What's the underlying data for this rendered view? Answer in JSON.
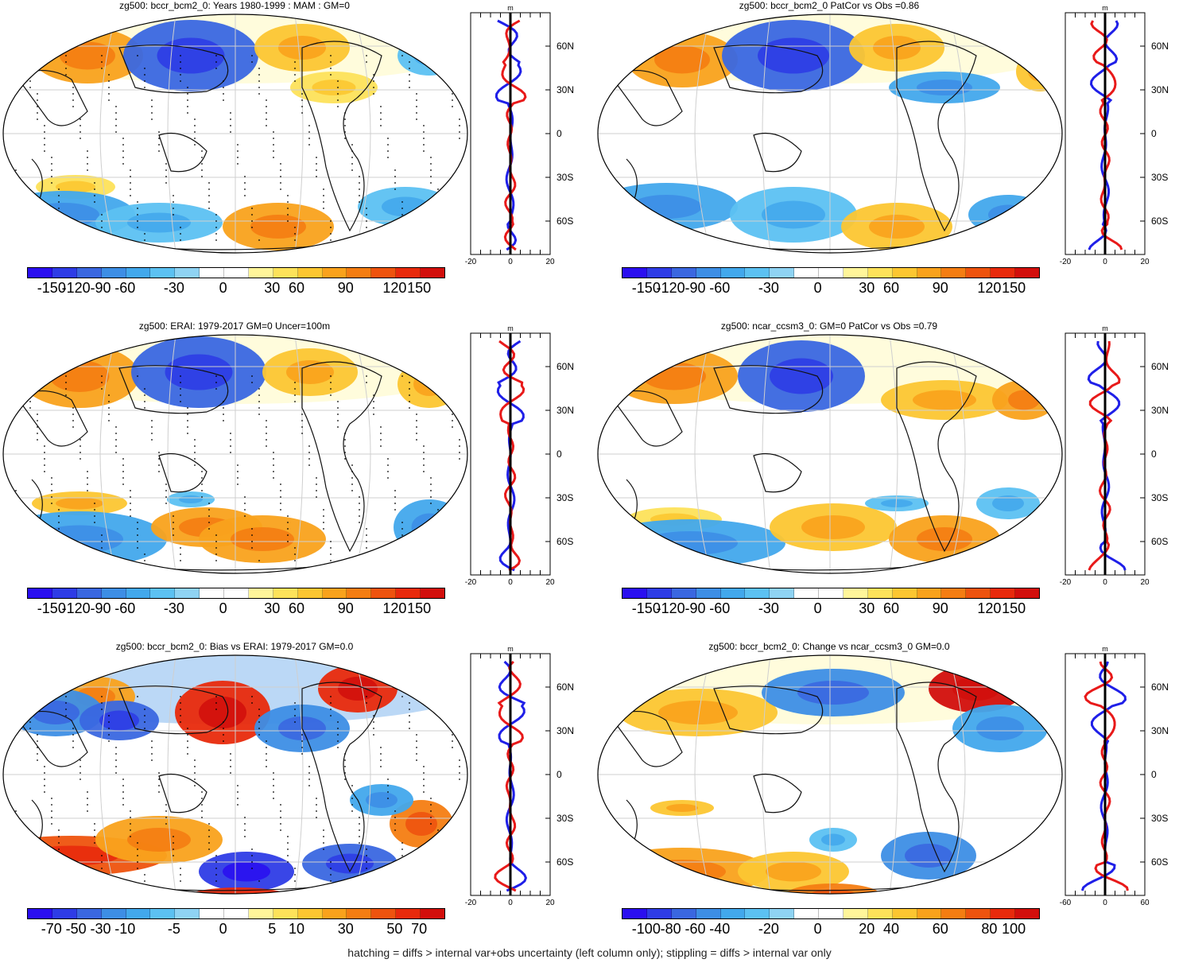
{
  "panels": [
    {
      "id": "p1",
      "title": "zg500: bccr_bcm2_0: Years 1980-1999 : MAM : GM=0",
      "colorbar": [
        "-150",
        "-120",
        "-90",
        "-60",
        "-30",
        "0",
        "30",
        "60",
        "90",
        "120",
        "150"
      ],
      "profile_ticks": [
        "-20",
        "0",
        "20"
      ],
      "profile_unit": "m"
    },
    {
      "id": "p2",
      "title": "zg500: bccr_bcm2_0 PatCor vs Obs =0.86",
      "colorbar": [
        "-150",
        "-120",
        "-90",
        "-60",
        "-30",
        "0",
        "30",
        "60",
        "90",
        "120",
        "150"
      ],
      "profile_ticks": [
        "-20",
        "0",
        "20"
      ],
      "profile_unit": "m"
    },
    {
      "id": "p3",
      "title": "zg500: ERAI: 1979-2017 GM=0 Uncer=100m",
      "colorbar": [
        "-150",
        "-120",
        "-90",
        "-60",
        "-30",
        "0",
        "30",
        "60",
        "90",
        "120",
        "150"
      ],
      "profile_ticks": [
        "-20",
        "0",
        "20"
      ],
      "profile_unit": "m"
    },
    {
      "id": "p4",
      "title": "zg500: ncar_ccsm3_0: GM=0 PatCor vs Obs =0.79",
      "colorbar": [
        "-150",
        "-120",
        "-90",
        "-60",
        "-30",
        "0",
        "30",
        "60",
        "90",
        "120",
        "150"
      ],
      "profile_ticks": [
        "-20",
        "0",
        "20"
      ],
      "profile_unit": "m"
    },
    {
      "id": "p5",
      "title": "zg500: bccr_bcm2_0: Bias vs ERAI: 1979-2017 GM=0.0",
      "colorbar": [
        "-70",
        "-50",
        "-30",
        "-10",
        "-5",
        "0",
        "5",
        "10",
        "30",
        "50",
        "70"
      ],
      "profile_ticks": [
        "-20",
        "0",
        "20"
      ],
      "profile_unit": "m"
    },
    {
      "id": "p6",
      "title": "zg500: bccr_bcm2_0: Change vs ncar_ccsm3_0 GM=0.0",
      "colorbar": [
        "-100",
        "-80",
        "-60",
        "-40",
        "-20",
        "0",
        "20",
        "40",
        "60",
        "80",
        "100"
      ],
      "profile_ticks": [
        "-60",
        "0",
        "60"
      ],
      "profile_unit": "m"
    }
  ],
  "lat_labels": [
    "60N",
    "30N",
    "0",
    "30S",
    "60S"
  ],
  "palette": [
    "#2a0ff0",
    "#2e3ce6",
    "#3a67e0",
    "#3d8ee5",
    "#42a8ec",
    "#5cc1f2",
    "#8fd3f3",
    "#ffffff",
    "#ffffff",
    "#fff59a",
    "#fde25a",
    "#fcc631",
    "#f9a21c",
    "#f47d12",
    "#ee530e",
    "#e82a0c",
    "#d20f0c"
  ],
  "profile_colors": {
    "model": "#e81919",
    "obs": "#1f1fe8",
    "zero": "#000000"
  },
  "footer": "hatching = diffs > internal var+obs uncertainty (left column only); stippling = diffs > internal var only"
}
